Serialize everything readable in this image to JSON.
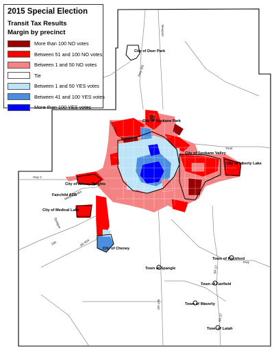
{
  "legend": {
    "title": "2015 Special Election",
    "subtitle_1": "Transit Tax Results",
    "subtitle_2": "Margin by precinct",
    "items": [
      {
        "label": "More than 100 NO votes",
        "color": "#9b0000"
      },
      {
        "label": "Between 51 and 100 NO votes",
        "color": "#ff0000"
      },
      {
        "label": "Between 1 and 50 NO votes",
        "color": "#f48484"
      },
      {
        "label": "Tie",
        "color": "#ffffff"
      },
      {
        "label": "Between 1 and 50 YES votes",
        "color": "#bde3f7"
      },
      {
        "label": "Between 41 and 100 YES votes",
        "color": "#4a8fe0"
      },
      {
        "label": "More than 100 YES votes",
        "color": "#0000ff"
      }
    ]
  },
  "places": {
    "deer_park": "City of Deer Park",
    "spokane_park": "City of Spokane Park",
    "spokane_valley": "City of Spokane Valley",
    "liberty_lake": "City of Liberty Lake",
    "airway_heights": "City of Airway Heights",
    "fairchild": "Fairchild AFB",
    "medical_lake": "City of Medical Lake",
    "cheney": "City of Cheney",
    "spangle": "Town of Spangle",
    "rockford": "Town of Rockford",
    "fairfield": "Town of Fairfield",
    "waverly": "Town of Waverly",
    "latah": "Town of Latah"
  },
  "roads": {
    "newport": "Newport",
    "hwy_395_north": "Hwy 395",
    "new_hwy": "New Hwy",
    "trent": "Trent",
    "hwy_2": "Hwy 2",
    "medical_lake_rd": "Medical Lake",
    "sprague": "Sprague",
    "sr_904": "SR 904",
    "i_90": "190",
    "sr_195": "SR 195",
    "sr_27": "SR 27",
    "sr_27b": "SR 27",
    "hwy": "Hwy"
  },
  "colors": {
    "more_than_100_no": "#9b0000",
    "between_51_100_no": "#ff0000",
    "between_1_50_no": "#f48484",
    "tie": "#ffffff",
    "between_1_50_yes": "#bde3f7",
    "between_41_100_yes": "#4a8fe0",
    "more_than_100_yes": "#0000ff"
  }
}
